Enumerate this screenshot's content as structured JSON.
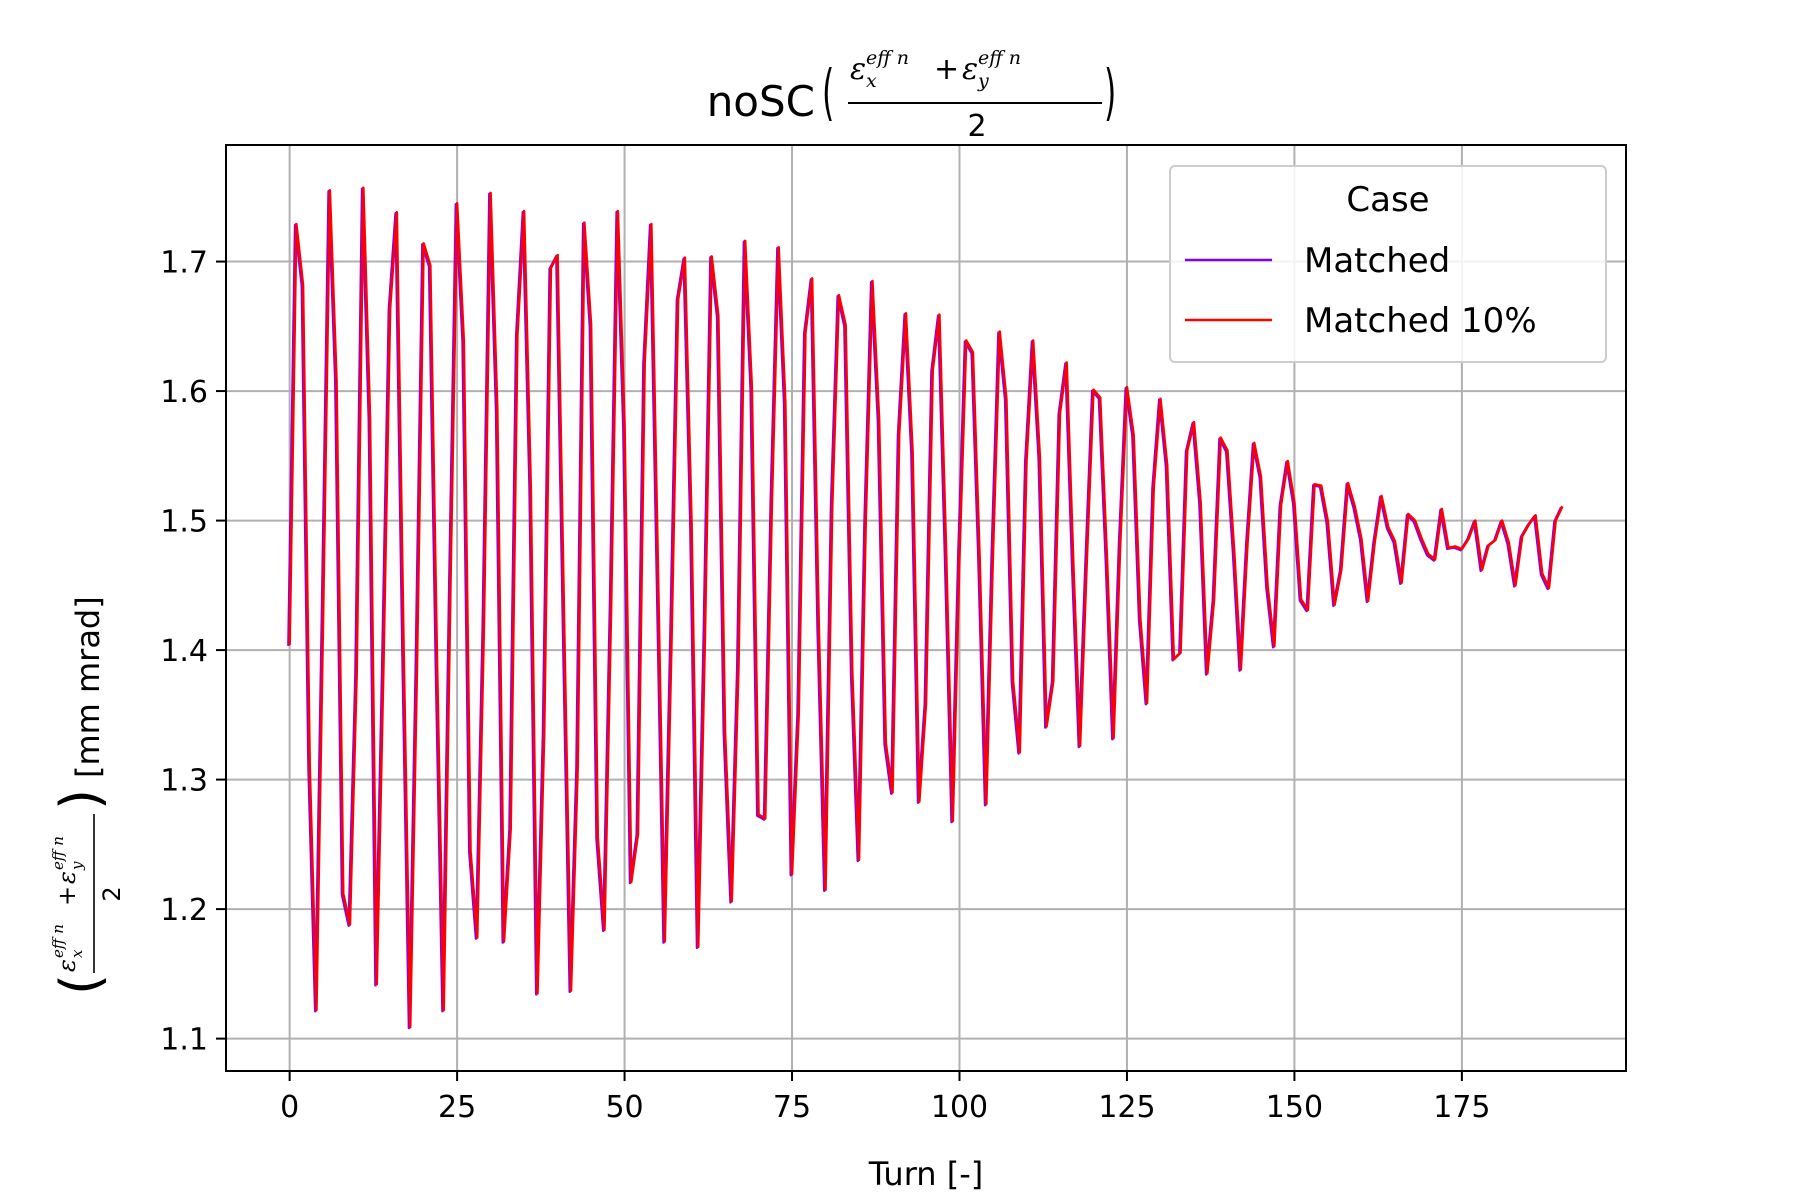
{
  "chart_data": {
    "type": "line",
    "title": "noSC",
    "title_fraction": {
      "numerator_left": "ε",
      "numerator_left_sub": "x",
      "numerator_left_sup": "eff n",
      "plus": "+",
      "numerator_right": "ε",
      "numerator_right_sub": "y",
      "numerator_right_sup": "eff n",
      "denominator": "2"
    },
    "xlabel": "Turn [-]",
    "ylabel_unit": "[mm mrad]",
    "xlim": [
      -9.5,
      199.5
    ],
    "ylim": [
      1.075,
      1.79
    ],
    "xticks": [
      0,
      25,
      50,
      75,
      100,
      125,
      150,
      175
    ],
    "yticks": [
      1.1,
      1.2,
      1.3,
      1.4,
      1.5,
      1.6,
      1.7
    ],
    "ytick_labels": [
      "1.1",
      "1.2",
      "1.3",
      "1.4",
      "1.5",
      "1.6",
      "1.7"
    ],
    "grid": true,
    "legend": {
      "title": "Case",
      "position": "top-right",
      "entries": [
        "Matched",
        "Matched 10%"
      ]
    },
    "colors": {
      "Matched": "#7f00ff",
      "Matched 10%": "#ff0000"
    },
    "x": [
      0,
      1,
      2,
      3,
      4,
      5,
      6,
      7,
      8,
      9,
      10,
      11,
      12,
      13,
      14,
      15,
      16,
      17,
      18,
      19,
      20,
      21,
      22,
      23,
      24,
      25,
      26,
      27,
      28,
      29,
      30,
      31,
      32,
      33,
      34,
      35,
      36,
      37,
      38,
      39,
      40,
      41,
      42,
      43,
      44,
      45,
      46,
      47,
      48,
      49,
      50,
      51,
      52,
      53,
      54,
      55,
      56,
      57,
      58,
      59,
      60,
      61,
      62,
      63,
      64,
      65,
      66,
      67,
      68,
      69,
      70,
      71,
      72,
      73,
      74,
      75,
      76,
      77,
      78,
      79,
      80,
      81,
      82,
      83,
      84,
      85,
      86,
      87,
      88,
      89,
      90,
      91,
      92,
      93,
      94,
      95,
      96,
      97,
      98,
      99,
      100,
      101,
      102,
      103,
      104,
      105,
      106,
      107,
      108,
      109,
      110,
      111,
      112,
      113,
      114,
      115,
      116,
      117,
      118,
      119,
      120,
      121,
      122,
      123,
      124,
      125,
      126,
      127,
      128,
      129,
      130,
      131,
      132,
      133,
      134,
      135,
      136,
      137,
      138,
      139,
      140,
      141,
      142,
      143,
      144,
      145,
      146,
      147,
      148,
      149,
      150,
      151,
      152,
      153,
      154,
      155,
      156,
      157,
      158,
      159,
      160,
      161,
      162,
      163,
      164,
      165,
      166,
      167,
      168,
      169,
      170,
      171,
      172,
      173,
      174,
      175,
      176,
      177,
      178,
      179,
      180,
      181,
      182,
      183,
      184,
      185,
      186,
      187,
      188,
      189,
      190
    ],
    "series": [
      {
        "name": "Matched",
        "values": [
          1.404,
          1.729,
          1.682,
          1.31,
          1.122,
          1.428,
          1.755,
          1.608,
          1.212,
          1.188,
          1.38,
          1.757,
          1.579,
          1.142,
          1.388,
          1.664,
          1.738,
          1.405,
          1.109,
          1.385,
          1.714,
          1.697,
          1.391,
          1.122,
          1.448,
          1.745,
          1.639,
          1.245,
          1.178,
          1.418,
          1.753,
          1.586,
          1.175,
          1.262,
          1.643,
          1.739,
          1.526,
          1.135,
          1.336,
          1.695,
          1.705,
          1.414,
          1.137,
          1.309,
          1.73,
          1.651,
          1.255,
          1.184,
          1.435,
          1.739,
          1.573,
          1.221,
          1.258,
          1.622,
          1.729,
          1.457,
          1.175,
          1.405,
          1.671,
          1.703,
          1.498,
          1.171,
          1.412,
          1.704,
          1.658,
          1.336,
          1.206,
          1.386,
          1.716,
          1.603,
          1.273,
          1.27,
          1.515,
          1.711,
          1.591,
          1.227,
          1.351,
          1.645,
          1.687,
          1.417,
          1.215,
          1.511,
          1.674,
          1.651,
          1.382,
          1.238,
          1.499,
          1.685,
          1.578,
          1.328,
          1.29,
          1.567,
          1.66,
          1.553,
          1.283,
          1.359,
          1.616,
          1.659,
          1.476,
          1.268,
          1.473,
          1.639,
          1.63,
          1.472,
          1.281,
          1.476,
          1.646,
          1.594,
          1.376,
          1.321,
          1.546,
          1.639,
          1.549,
          1.341,
          1.376,
          1.583,
          1.622,
          1.465,
          1.326,
          1.469,
          1.601,
          1.595,
          1.473,
          1.332,
          1.483,
          1.603,
          1.566,
          1.424,
          1.359,
          1.526,
          1.594,
          1.543,
          1.393,
          1.398,
          1.554,
          1.576,
          1.514,
          1.382,
          1.439,
          1.564,
          1.554,
          1.477,
          1.385,
          1.483,
          1.56,
          1.534,
          1.449,
          1.403,
          1.512,
          1.546,
          1.514,
          1.439,
          1.431,
          1.528,
          1.527,
          1.499,
          1.435,
          1.462,
          1.529,
          1.511,
          1.486,
          1.438,
          1.484,
          1.519,
          1.495,
          1.484,
          1.452,
          1.505,
          1.5,
          1.486,
          1.474,
          1.47,
          1.509,
          1.479,
          1.48,
          1.478,
          1.486,
          1.5,
          1.462,
          1.481,
          1.485,
          1.5,
          1.483,
          1.45,
          1.488,
          1.497,
          1.504,
          1.459,
          1.448,
          1.5,
          1.511
        ]
      },
      {
        "name": "Matched 10%",
        "values": [
          1.404,
          1.729,
          1.682,
          1.31,
          1.122,
          1.428,
          1.755,
          1.608,
          1.212,
          1.188,
          1.38,
          1.757,
          1.579,
          1.142,
          1.388,
          1.664,
          1.738,
          1.405,
          1.109,
          1.385,
          1.714,
          1.697,
          1.391,
          1.122,
          1.448,
          1.745,
          1.639,
          1.245,
          1.178,
          1.418,
          1.753,
          1.586,
          1.175,
          1.262,
          1.643,
          1.739,
          1.526,
          1.135,
          1.336,
          1.695,
          1.705,
          1.414,
          1.137,
          1.309,
          1.73,
          1.651,
          1.255,
          1.184,
          1.435,
          1.739,
          1.573,
          1.221,
          1.258,
          1.622,
          1.729,
          1.457,
          1.175,
          1.405,
          1.671,
          1.703,
          1.498,
          1.171,
          1.412,
          1.704,
          1.658,
          1.336,
          1.206,
          1.386,
          1.716,
          1.603,
          1.273,
          1.27,
          1.515,
          1.711,
          1.591,
          1.227,
          1.351,
          1.645,
          1.687,
          1.417,
          1.215,
          1.511,
          1.674,
          1.651,
          1.382,
          1.238,
          1.499,
          1.685,
          1.578,
          1.328,
          1.29,
          1.567,
          1.66,
          1.553,
          1.283,
          1.359,
          1.616,
          1.659,
          1.476,
          1.268,
          1.473,
          1.639,
          1.63,
          1.472,
          1.281,
          1.476,
          1.646,
          1.594,
          1.376,
          1.321,
          1.546,
          1.639,
          1.549,
          1.341,
          1.376,
          1.583,
          1.622,
          1.465,
          1.326,
          1.469,
          1.601,
          1.595,
          1.473,
          1.332,
          1.483,
          1.603,
          1.566,
          1.424,
          1.359,
          1.526,
          1.594,
          1.543,
          1.393,
          1.398,
          1.554,
          1.576,
          1.514,
          1.382,
          1.439,
          1.564,
          1.554,
          1.477,
          1.385,
          1.483,
          1.56,
          1.534,
          1.449,
          1.403,
          1.512,
          1.546,
          1.514,
          1.439,
          1.431,
          1.528,
          1.527,
          1.499,
          1.435,
          1.462,
          1.529,
          1.511,
          1.486,
          1.438,
          1.484,
          1.519,
          1.495,
          1.484,
          1.452,
          1.505,
          1.5,
          1.486,
          1.474,
          1.47,
          1.509,
          1.479,
          1.48,
          1.478,
          1.486,
          1.5,
          1.462,
          1.481,
          1.485,
          1.5,
          1.483,
          1.45,
          1.488,
          1.497,
          1.504,
          1.459,
          1.448,
          1.5,
          1.511
        ]
      }
    ]
  }
}
